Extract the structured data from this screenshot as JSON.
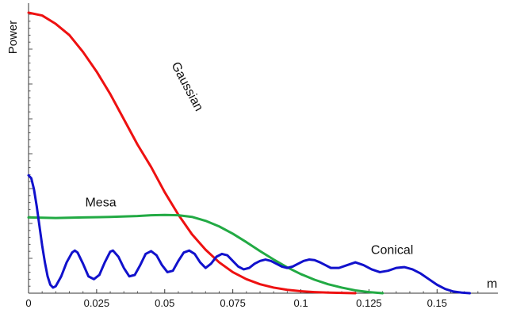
{
  "chart_data": {
    "type": "line",
    "title": "",
    "xlabel": "m",
    "ylabel": "Power",
    "xlim": [
      0,
      0.17
    ],
    "ylim": [
      0,
      1
    ],
    "x_ticks": [
      0,
      0.025,
      0.05,
      0.075,
      0.1,
      0.125,
      0.15
    ],
    "x_tick_labels": [
      "0",
      "0.025",
      "0.05",
      "0.075",
      "0.1",
      "0.125",
      "0.15"
    ],
    "grid": false,
    "legend": "none",
    "series": [
      {
        "name": "Gaussian",
        "color": "#ee1111",
        "x": [
          0,
          0.005,
          0.01,
          0.015,
          0.02,
          0.025,
          0.03,
          0.035,
          0.04,
          0.045,
          0.05,
          0.055,
          0.06,
          0.065,
          0.07,
          0.075,
          0.08,
          0.085,
          0.09,
          0.095,
          0.1,
          0.105,
          0.11,
          0.115,
          0.12
        ],
        "values": [
          1.0,
          0.99,
          0.96,
          0.92,
          0.86,
          0.79,
          0.71,
          0.62,
          0.53,
          0.45,
          0.36,
          0.28,
          0.21,
          0.155,
          0.11,
          0.075,
          0.05,
          0.032,
          0.02,
          0.012,
          0.007,
          0.004,
          0.002,
          0.001,
          0.0
        ]
      },
      {
        "name": "Mesa",
        "color": "#22aa44",
        "x": [
          0,
          0.01,
          0.02,
          0.03,
          0.04,
          0.045,
          0.05,
          0.055,
          0.06,
          0.065,
          0.07,
          0.075,
          0.08,
          0.085,
          0.09,
          0.095,
          0.1,
          0.105,
          0.11,
          0.115,
          0.12,
          0.125,
          0.13
        ],
        "values": [
          0.27,
          0.268,
          0.27,
          0.272,
          0.275,
          0.278,
          0.279,
          0.278,
          0.272,
          0.258,
          0.238,
          0.212,
          0.182,
          0.15,
          0.12,
          0.092,
          0.068,
          0.048,
          0.032,
          0.02,
          0.01,
          0.004,
          0.0
        ]
      },
      {
        "name": "Conical",
        "color": "#1111cc",
        "x": [
          0,
          0.001,
          0.002,
          0.003,
          0.004,
          0.005,
          0.006,
          0.007,
          0.008,
          0.009,
          0.01,
          0.012,
          0.014,
          0.016,
          0.017,
          0.018,
          0.02,
          0.022,
          0.024,
          0.026,
          0.028,
          0.03,
          0.031,
          0.033,
          0.035,
          0.037,
          0.039,
          0.041,
          0.043,
          0.045,
          0.047,
          0.049,
          0.051,
          0.053,
          0.055,
          0.057,
          0.059,
          0.061,
          0.063,
          0.065,
          0.067,
          0.069,
          0.071,
          0.073,
          0.075,
          0.077,
          0.079,
          0.081,
          0.083,
          0.085,
          0.087,
          0.089,
          0.091,
          0.093,
          0.095,
          0.097,
          0.099,
          0.101,
          0.103,
          0.105,
          0.107,
          0.109,
          0.111,
          0.114,
          0.117,
          0.12,
          0.123,
          0.126,
          0.129,
          0.132,
          0.135,
          0.138,
          0.141,
          0.144,
          0.147,
          0.15,
          0.153,
          0.156,
          0.159,
          0.162
        ],
        "values": [
          0.42,
          0.41,
          0.37,
          0.31,
          0.24,
          0.17,
          0.11,
          0.06,
          0.03,
          0.02,
          0.025,
          0.06,
          0.11,
          0.145,
          0.152,
          0.145,
          0.105,
          0.06,
          0.05,
          0.065,
          0.11,
          0.148,
          0.152,
          0.13,
          0.09,
          0.06,
          0.065,
          0.1,
          0.14,
          0.15,
          0.135,
          0.1,
          0.075,
          0.08,
          0.115,
          0.145,
          0.152,
          0.14,
          0.11,
          0.09,
          0.105,
          0.13,
          0.14,
          0.135,
          0.115,
          0.095,
          0.085,
          0.09,
          0.105,
          0.115,
          0.12,
          0.115,
          0.105,
          0.095,
          0.09,
          0.095,
          0.105,
          0.115,
          0.12,
          0.118,
          0.11,
          0.1,
          0.09,
          0.09,
          0.1,
          0.11,
          0.1,
          0.085,
          0.075,
          0.08,
          0.09,
          0.093,
          0.085,
          0.07,
          0.05,
          0.03,
          0.015,
          0.006,
          0.002,
          0.0
        ]
      }
    ],
    "annotations": [
      {
        "text": "Gaussian",
        "series": 0,
        "x": 0.057,
        "y": 0.73,
        "rotate": 62
      },
      {
        "text": "Mesa",
        "series": 1,
        "x": 0.0265,
        "y": 0.31,
        "rotate": 0
      },
      {
        "text": "Conical",
        "series": 2,
        "x": 0.1335,
        "y": 0.14,
        "rotate": 0
      }
    ]
  }
}
